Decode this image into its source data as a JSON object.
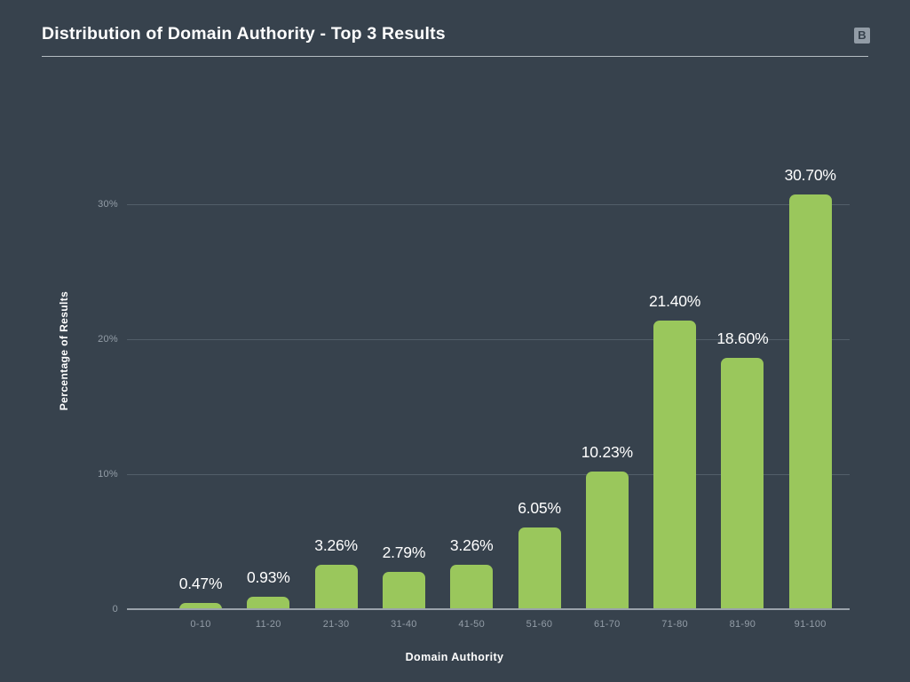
{
  "header": {
    "title": "Distribution of Domain Authority - Top 3 Results",
    "logo_letter": "B"
  },
  "colors": {
    "background": "#37424d",
    "bar": "#9ac75c",
    "gridline": "#525e69",
    "axis_line": "#9aa3ab",
    "tick_text": "#939da7",
    "value_text": "#ffffff",
    "divider": "#b4bcc2"
  },
  "chart_data": {
    "type": "bar",
    "title": "Distribution of Domain Authority - Top 3 Results",
    "categories": [
      "0-10",
      "11-20",
      "21-30",
      "31-40",
      "41-50",
      "51-60",
      "61-70",
      "71-80",
      "81-90",
      "91-100"
    ],
    "values": [
      0.47,
      0.93,
      3.26,
      2.79,
      3.26,
      6.05,
      10.23,
      21.4,
      18.6,
      30.7
    ],
    "value_labels": [
      "0.47%",
      "0.93%",
      "3.26%",
      "2.79%",
      "3.26%",
      "6.05%",
      "10.23%",
      "21.40%",
      "18.60%",
      "30.70%"
    ],
    "xlabel": "Domain Authority",
    "ylabel": "Percentage of Results",
    "yticks": [
      {
        "value": 0,
        "label": "0"
      },
      {
        "value": 10,
        "label": "10%"
      },
      {
        "value": 20,
        "label": "20%"
      },
      {
        "value": 30,
        "label": "30%"
      }
    ],
    "ylim": [
      0,
      33
    ],
    "grid": true,
    "legend": false
  }
}
